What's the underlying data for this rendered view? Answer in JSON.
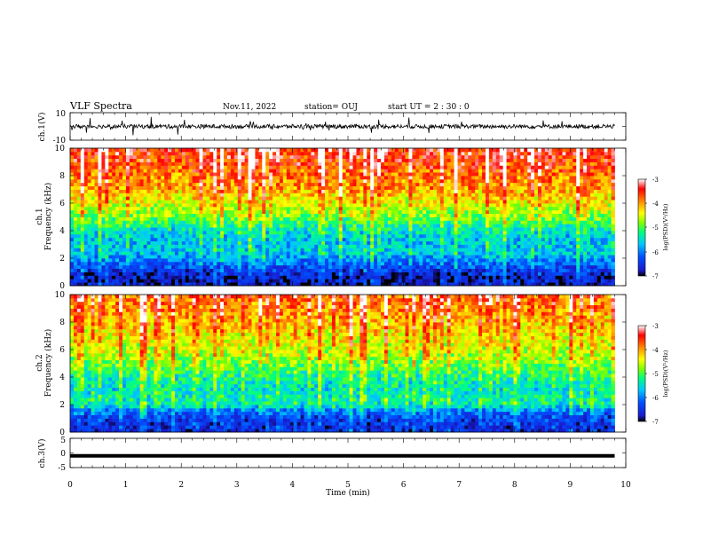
{
  "header": {
    "title": "VLF Spectra",
    "date": "Nov.11, 2022",
    "station": "station= OUJ",
    "start": "start  UT =   2 : 30 : 0"
  },
  "panels": {
    "ch1_wave": {
      "ylabel": "ch.1(V)",
      "ytick_top": "10",
      "ytick_bottom": "-10"
    },
    "ch1_spec": {
      "ylabel": "ch.1",
      "ylabel2": "Frequency (kHz)",
      "yticks": [
        "0",
        "2",
        "4",
        "6",
        "8",
        "10"
      ]
    },
    "ch2_spec": {
      "ylabel": "ch.2",
      "ylabel2": "Frequency (kHz)",
      "yticks": [
        "0",
        "2",
        "4",
        "6",
        "8",
        "10"
      ]
    },
    "ch3_wave": {
      "ylabel": "ch.3(V)",
      "yticks": [
        "5",
        "0",
        "-5"
      ]
    }
  },
  "colorbar": {
    "label": "log(PSD)(V²/Hz)",
    "ticks": [
      "-3",
      "-4",
      "-5",
      "-6",
      "-7"
    ],
    "colors": [
      "#000000",
      "#1a1acc",
      "#0050ff",
      "#00c8ff",
      "#00ff80",
      "#80ff00",
      "#ffff00",
      "#ff8000",
      "#ff0000",
      "#ffffff"
    ]
  },
  "xaxis": {
    "label": "Time (min)",
    "ticks": [
      "0",
      "1",
      "2",
      "3",
      "4",
      "5",
      "6",
      "7",
      "8",
      "9",
      "10"
    ]
  },
  "chart_data": [
    {
      "type": "line",
      "series": [
        {
          "values": [
            0
          ]
        }
      ],
      "xlim": [
        0,
        9.8
      ],
      "ylim": [
        -10,
        10
      ],
      "xlabel": "Time (min)",
      "ylabel": "ch.1(V)"
    },
    {
      "type": "heatmap",
      "title": "",
      "xlabel": "Time (min)",
      "ylabel": "ch.1 Frequency (kHz)",
      "xlim": [
        0,
        9.8
      ],
      "ylim": [
        0,
        10
      ],
      "zlim": [
        -7,
        -3
      ],
      "zlabel": "log(PSD)(V²/Hz)",
      "freq_kHz": [
        0.5,
        1,
        1.5,
        2,
        2.5,
        3,
        3.5,
        4,
        4.5,
        5,
        5.5,
        6,
        6.5,
        7,
        7.5,
        8,
        8.5,
        9,
        9.5,
        10
      ],
      "median_log_psd": [
        -6.8,
        -6.6,
        -6.3,
        -6.0,
        -5.7,
        -5.8,
        -5.8,
        -5.6,
        -5.3,
        -5.0,
        -4.8,
        -4.6,
        -4.4,
        -4.2,
        -4.1,
        -4.0,
        -3.9,
        -3.8,
        -3.7,
        -3.6
      ]
    },
    {
      "type": "heatmap",
      "title": "",
      "xlabel": "Time (min)",
      "ylabel": "ch.2 Frequency (kHz)",
      "xlim": [
        0,
        9.8
      ],
      "ylim": [
        0,
        10
      ],
      "zlim": [
        -7,
        -3
      ],
      "zlabel": "log(PSD)(V²/Hz)",
      "freq_kHz": [
        0.5,
        1,
        1.5,
        2,
        2.5,
        3,
        3.5,
        4,
        4.5,
        5,
        5.5,
        6,
        6.5,
        7,
        7.5,
        8,
        8.5,
        9,
        9.5,
        10
      ],
      "median_log_psd": [
        -6.6,
        -6.5,
        -6.2,
        -5.5,
        -5.4,
        -5.6,
        -5.5,
        -5.4,
        -5.2,
        -5.0,
        -4.8,
        -4.7,
        -4.6,
        -4.5,
        -4.4,
        -4.3,
        -4.2,
        -4.1,
        -4.0,
        -3.9
      ]
    },
    {
      "type": "line",
      "series": [
        {
          "values": [
            -1,
            -1
          ]
        }
      ],
      "x": [
        0,
        9.8
      ],
      "ylim": [
        -5,
        5
      ],
      "xlabel": "Time (min)",
      "ylabel": "ch.3(V)"
    }
  ]
}
